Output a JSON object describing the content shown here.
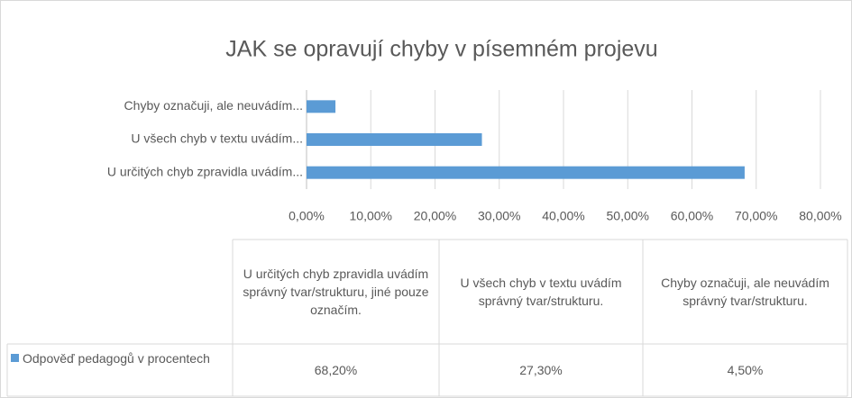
{
  "chart_data": {
    "type": "bar",
    "orientation": "horizontal",
    "title": "JAK se opravují chyby v písemném projevu",
    "categories": [
      "U určitých chyb zpravidla uvádím správný tvar/strukturu, jiné pouze označím.",
      "U všech chyb v textu uvádím správný tvar/strukturu.",
      "Chyby označuji, ale neuvádím správný tvar/strukturu."
    ],
    "axis_labels": [
      "U určitých chyb zpravidla uvádím...",
      "U všech chyb v textu uvádím...",
      "Chyby označuji, ale neuvádím..."
    ],
    "series": [
      {
        "name": "Odpověď pedagogů v procentech",
        "color": "#5b9bd5",
        "values": [
          68.2,
          27.3,
          4.5
        ],
        "value_labels": [
          "68,20%",
          "27,30%",
          "4,50%"
        ]
      }
    ],
    "xlim": [
      0,
      80
    ],
    "xticks": [
      {
        "value": 0,
        "label": "0,00%"
      },
      {
        "value": 10,
        "label": "10,00%"
      },
      {
        "value": 20,
        "label": "20,00%"
      },
      {
        "value": 30,
        "label": "30,00%"
      },
      {
        "value": 40,
        "label": "40,00%"
      },
      {
        "value": 50,
        "label": "50,00%"
      },
      {
        "value": 60,
        "label": "60,00%"
      },
      {
        "value": 70,
        "label": "70,00%"
      },
      {
        "value": 80,
        "label": "80,00%"
      }
    ],
    "grid": true
  }
}
